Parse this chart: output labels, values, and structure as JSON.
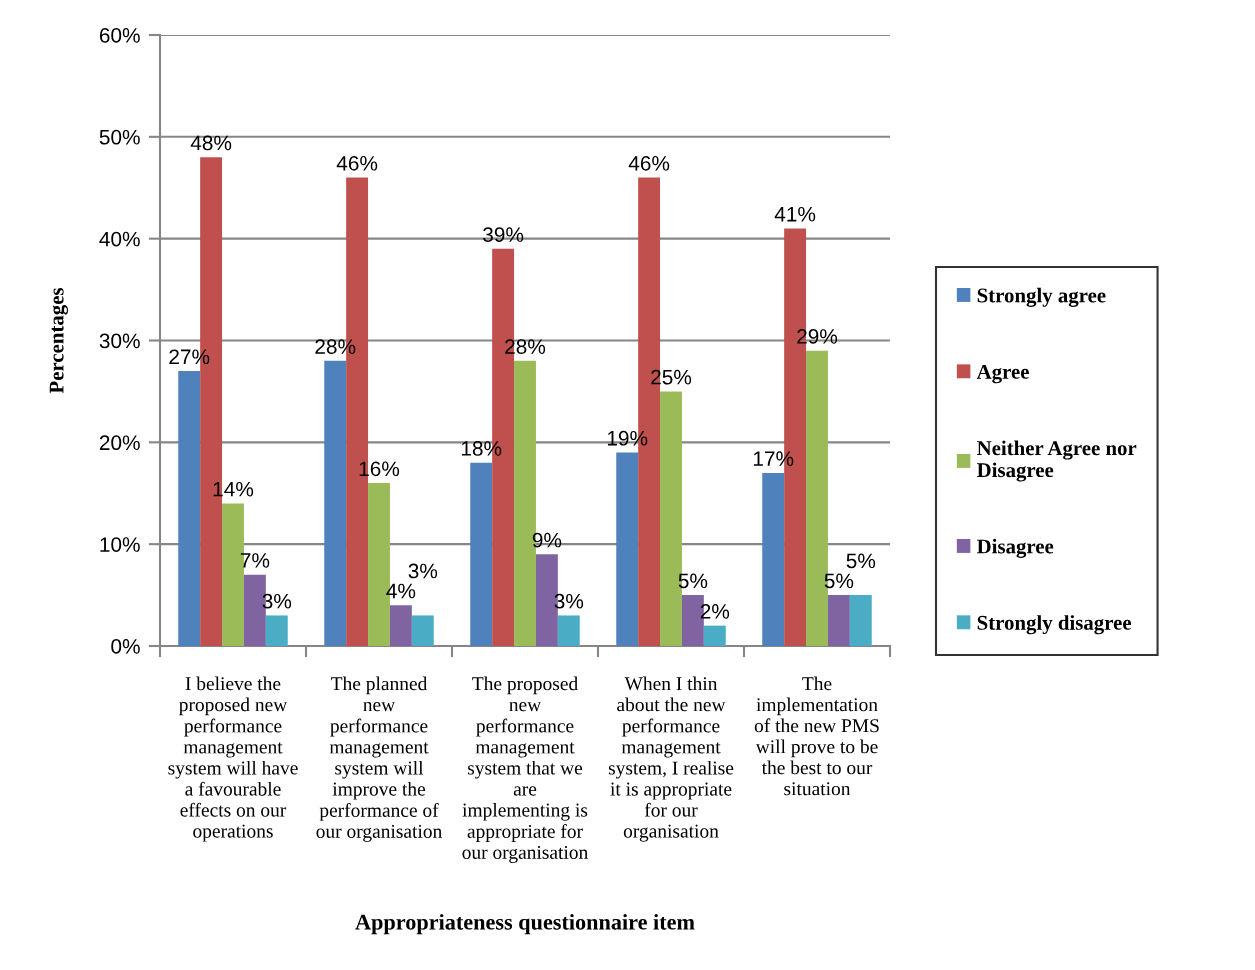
{
  "chart_data": {
    "type": "bar",
    "xlabel": "Appropriateness questionnaire item",
    "ylabel": "Percentages",
    "categories": [
      "I believe the\nproposed new\nperformance\nmanagement\nsystem will have\na favourable\neffects on our\noperations",
      "The planned\nnew\nperformance\nmanagement\nsystem will\nimprove the\nperformance of\nour organisation",
      "The proposed\nnew\nperformance\nmanagement\nsystem that we\nare\nimplementing is\nappropriate for\nour organisation",
      "When I thin\nabout the new\nperformance\nmanagement\nsystem, I realise\nit is appropriate\nfor our\norganisation",
      "The\nimplementation\nof the new PMS\nwill prove to be\nthe best to our\nsituation"
    ],
    "series": [
      {
        "name": "Strongly agree",
        "color": "#4f81bd",
        "values": [
          27,
          28,
          18,
          19,
          17
        ],
        "value_labels": [
          "27%",
          "28%",
          "18%",
          "19%",
          "17%"
        ]
      },
      {
        "name": "Agree",
        "color": "#c0504d",
        "values": [
          48,
          46,
          39,
          46,
          41
        ],
        "value_labels": [
          "48%",
          "46%",
          "39%",
          "46%",
          "41%"
        ]
      },
      {
        "name": "Neither Agree nor\nDisagree",
        "color": "#9bbb59",
        "values": [
          14,
          16,
          28,
          25,
          29
        ],
        "value_labels": [
          "14%",
          "16%",
          "28%",
          "25%",
          "29%"
        ]
      },
      {
        "name": "Disagree",
        "color": "#8064a2",
        "values": [
          7,
          4,
          9,
          5,
          5
        ],
        "value_labels": [
          "7%",
          "4%",
          "9%",
          "5%",
          "5%"
        ]
      },
      {
        "name": "Strongly disagree",
        "color": "#4bacc6",
        "values": [
          3,
          3,
          3,
          2,
          5
        ],
        "value_labels": [
          "3%",
          "3%",
          "3%",
          "2%",
          "5%"
        ]
      }
    ],
    "ylim": [
      0,
      60
    ],
    "yticks": [
      {
        "value": 0,
        "label": "0%"
      },
      {
        "value": 10,
        "label": "10%"
      },
      {
        "value": 20,
        "label": "20%"
      },
      {
        "value": 30,
        "label": "30%"
      },
      {
        "value": 40,
        "label": "40%"
      },
      {
        "value": 50,
        "label": "50%"
      },
      {
        "value": 60,
        "label": "60%"
      }
    ],
    "grid": "y",
    "legend": "right"
  }
}
